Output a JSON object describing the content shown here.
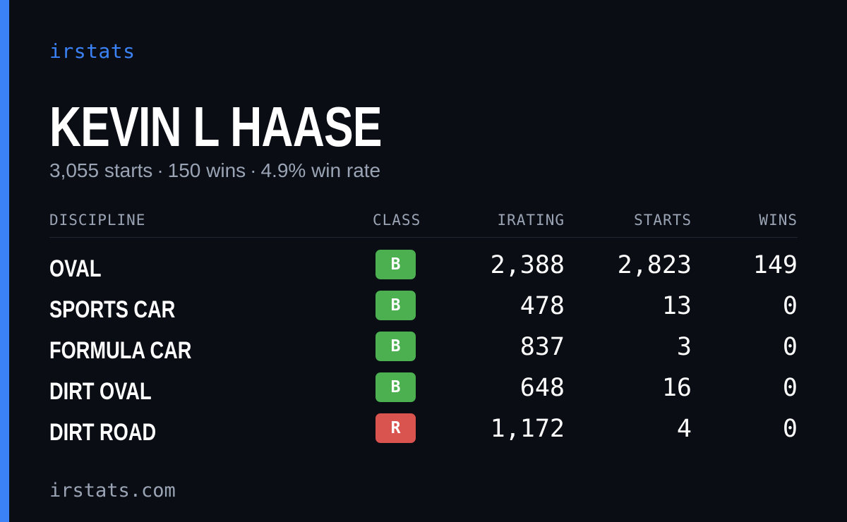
{
  "brand": "irstats",
  "driver": {
    "name": "KEVIN L HAASE"
  },
  "summary": {
    "starts": "3,055 starts",
    "wins": "150 wins",
    "win_rate": "4.9% win rate",
    "separator": "·"
  },
  "table": {
    "headers": {
      "discipline": "DISCIPLINE",
      "class": "CLASS",
      "irating": "IRATING",
      "starts": "STARTS",
      "wins": "WINS"
    },
    "rows": [
      {
        "discipline": "OVAL",
        "class": "B",
        "class_color": "#4caf50",
        "irating": "2,388",
        "starts": "2,823",
        "wins": "149"
      },
      {
        "discipline": "SPORTS CAR",
        "class": "B",
        "class_color": "#4caf50",
        "irating": "478",
        "starts": "13",
        "wins": "0"
      },
      {
        "discipline": "FORMULA CAR",
        "class": "B",
        "class_color": "#4caf50",
        "irating": "837",
        "starts": "3",
        "wins": "0"
      },
      {
        "discipline": "DIRT OVAL",
        "class": "B",
        "class_color": "#4caf50",
        "irating": "648",
        "starts": "16",
        "wins": "0"
      },
      {
        "discipline": "DIRT ROAD",
        "class": "R",
        "class_color": "#d9534f",
        "irating": "1,172",
        "starts": "4",
        "wins": "0"
      }
    ]
  },
  "footer": "irstats.com",
  "colors": {
    "accent": "#3b82f6",
    "background": "#0a0d14",
    "muted": "#9aa4b4",
    "class_b": "#4caf50",
    "class_r": "#d9534f"
  }
}
